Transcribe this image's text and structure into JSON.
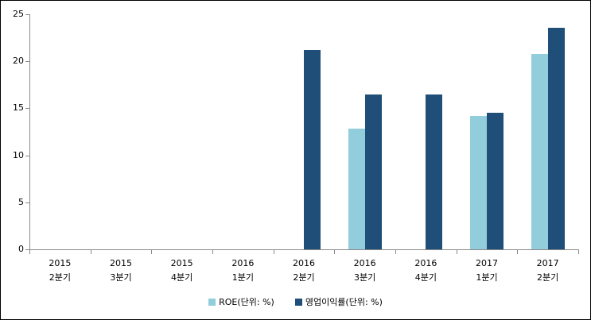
{
  "chart_data": {
    "type": "bar",
    "title": "",
    "xlabel": "",
    "ylabel": "",
    "categories": [
      {
        "year": "2015",
        "quarter": "2분기"
      },
      {
        "year": "2015",
        "quarter": "3분기"
      },
      {
        "year": "2015",
        "quarter": "4분기"
      },
      {
        "year": "2016",
        "quarter": "1분기"
      },
      {
        "year": "2016",
        "quarter": "2분기"
      },
      {
        "year": "2016",
        "quarter": "3분기"
      },
      {
        "year": "2016",
        "quarter": "4분기"
      },
      {
        "year": "2017",
        "quarter": "1분기"
      },
      {
        "year": "2017",
        "quarter": "2분기"
      }
    ],
    "series": [
      {
        "name": "ROE(단위: %)",
        "color": "#92CDDC",
        "values": [
          0,
          0,
          0,
          0,
          0,
          12.8,
          0,
          14.2,
          20.8
        ]
      },
      {
        "name": "영업이익률(단위: %)",
        "color": "#1F4E79",
        "values": [
          0,
          0,
          0,
          0,
          21.2,
          16.5,
          16.5,
          14.5,
          23.6
        ]
      }
    ],
    "y_axis": {
      "min": 0,
      "max": 25,
      "step": 5,
      "ticks": [
        0,
        5,
        10,
        15,
        20,
        25
      ]
    },
    "legend_position": "bottom",
    "grid": false
  },
  "colors": {
    "axis": "#898989",
    "text": "#000000",
    "background": "#FFFFFF",
    "border": "#000000"
  }
}
